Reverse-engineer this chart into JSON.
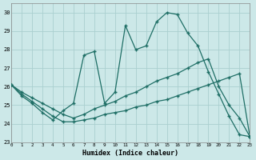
{
  "xlabel": "Humidex (Indice chaleur)",
  "bg_color": "#cce8e8",
  "line_color": "#1e6e65",
  "grid_color": "#aacfcf",
  "xlim": [
    0,
    23
  ],
  "ylim": [
    23,
    30.5
  ],
  "yticks": [
    23,
    24,
    25,
    26,
    27,
    28,
    29,
    30
  ],
  "xticks": [
    0,
    1,
    2,
    3,
    4,
    5,
    6,
    7,
    8,
    9,
    10,
    11,
    12,
    13,
    14,
    15,
    16,
    17,
    18,
    19,
    20,
    21,
    22,
    23
  ],
  "line1_x": [
    0,
    1,
    2,
    3,
    4,
    5,
    6,
    7,
    8,
    9,
    10,
    11,
    12,
    13,
    14,
    15,
    16,
    17,
    18,
    19,
    20,
    21,
    22,
    23
  ],
  "line1_y": [
    26.1,
    25.5,
    25.1,
    24.6,
    24.2,
    24.7,
    25.1,
    27.7,
    27.9,
    25.1,
    25.7,
    29.3,
    28.0,
    28.2,
    29.5,
    30.0,
    29.9,
    28.9,
    28.2,
    26.8,
    25.6,
    24.4,
    23.4,
    23.3
  ],
  "line2_x": [
    0,
    1,
    2,
    3,
    4,
    5,
    6,
    7,
    8,
    9,
    10,
    11,
    12,
    13,
    14,
    15,
    16,
    17,
    18,
    19,
    20,
    21,
    22,
    23
  ],
  "line2_y": [
    26.1,
    25.7,
    25.4,
    25.1,
    24.8,
    24.5,
    24.3,
    24.5,
    24.8,
    25.0,
    25.2,
    25.5,
    25.7,
    26.0,
    26.3,
    26.5,
    26.7,
    27.0,
    27.3,
    27.5,
    26.0,
    25.0,
    24.3,
    23.3
  ],
  "line3_x": [
    0,
    1,
    2,
    3,
    4,
    5,
    6,
    7,
    8,
    9,
    10,
    11,
    12,
    13,
    14,
    15,
    16,
    17,
    18,
    19,
    20,
    21,
    22,
    23
  ],
  "line3_y": [
    26.1,
    25.6,
    25.2,
    24.8,
    24.4,
    24.1,
    24.1,
    24.2,
    24.3,
    24.5,
    24.6,
    24.7,
    24.9,
    25.0,
    25.2,
    25.3,
    25.5,
    25.7,
    25.9,
    26.1,
    26.3,
    26.5,
    26.7,
    23.3
  ]
}
